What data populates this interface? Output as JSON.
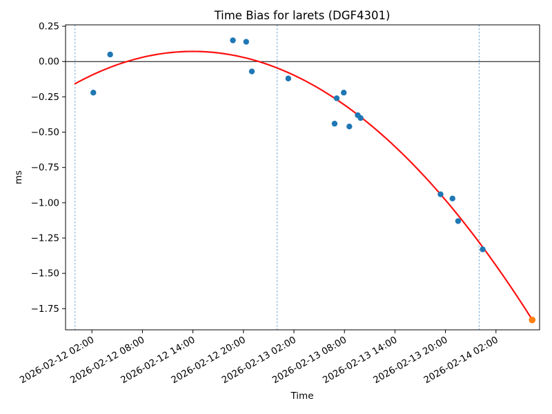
{
  "chart_data": {
    "type": "scatter",
    "title": "Time Bias for larets (DGF4301)",
    "xlabel": "Time",
    "ylabel": "ms",
    "x_base_time": "2026-02-12 00:00",
    "x_unit": "hours since 2026-02-12 00:00",
    "xlim": [
      -1.13,
      55.18
    ],
    "ylim": [
      -1.9,
      0.26
    ],
    "grid": false,
    "x_ticks": [
      {
        "hours": 2,
        "label": "2026-02-12 02:00"
      },
      {
        "hours": 8,
        "label": "2026-02-12 08:00"
      },
      {
        "hours": 14,
        "label": "2026-02-12 14:00"
      },
      {
        "hours": 20,
        "label": "2026-02-12 20:00"
      },
      {
        "hours": 26,
        "label": "2026-02-13 02:00"
      },
      {
        "hours": 32,
        "label": "2026-02-13 08:00"
      },
      {
        "hours": 38,
        "label": "2026-02-13 14:00"
      },
      {
        "hours": 44,
        "label": "2026-02-13 20:00"
      },
      {
        "hours": 50,
        "label": "2026-02-14 02:00"
      }
    ],
    "y_ticks": [
      0.25,
      0.0,
      -0.25,
      -0.5,
      -0.75,
      -1.0,
      -1.25,
      -1.5,
      -1.75
    ],
    "zero_line_y": 0,
    "day_boundary_vlines_hours": [
      0,
      24,
      48
    ],
    "colors": {
      "observed": "#1f77b4",
      "predicted": "#ff7f0e",
      "fit_line": "#fe1010",
      "day_vline": "#6aa5d6",
      "zero_line": "#000000",
      "spine": "#000000"
    },
    "series": [
      {
        "name": "observed",
        "marker": "circle",
        "color_key": "observed",
        "radius": 4.2,
        "points": [
          {
            "time": "2026-02-12 02:10",
            "hours": 2.17,
            "ms": -0.22
          },
          {
            "time": "2026-02-12 04:10",
            "hours": 4.17,
            "ms": 0.05
          },
          {
            "time": "2026-02-12 18:45",
            "hours": 18.75,
            "ms": 0.15
          },
          {
            "time": "2026-02-12 20:20",
            "hours": 20.33,
            "ms": 0.14
          },
          {
            "time": "2026-02-12 21:00",
            "hours": 21.0,
            "ms": -0.07
          },
          {
            "time": "2026-02-13 01:20",
            "hours": 25.33,
            "ms": -0.12
          },
          {
            "time": "2026-02-13 06:50",
            "hours": 30.83,
            "ms": -0.44
          },
          {
            "time": "2026-02-13 07:05",
            "hours": 31.08,
            "ms": -0.26
          },
          {
            "time": "2026-02-13 07:55",
            "hours": 31.92,
            "ms": -0.22
          },
          {
            "time": "2026-02-13 08:35",
            "hours": 32.58,
            "ms": -0.46
          },
          {
            "time": "2026-02-13 09:35",
            "hours": 33.58,
            "ms": -0.38
          },
          {
            "time": "2026-02-13 09:55",
            "hours": 33.92,
            "ms": -0.4
          },
          {
            "time": "2026-02-13 19:25",
            "hours": 43.42,
            "ms": -0.94
          },
          {
            "time": "2026-02-13 20:50",
            "hours": 44.83,
            "ms": -0.97
          },
          {
            "time": "2026-02-13 21:30",
            "hours": 45.5,
            "ms": -1.13
          },
          {
            "time": "2026-02-14 00:25",
            "hours": 48.42,
            "ms": -1.33
          }
        ]
      },
      {
        "name": "predicted",
        "marker": "circle",
        "color_key": "predicted",
        "radius": 4.8,
        "points": [
          {
            "time": "2026-02-14 06:18",
            "hours": 54.3,
            "ms": -1.83
          }
        ]
      }
    ],
    "fit_curve": {
      "type": "quadratic",
      "coeffs_ms_vs_hours": {
        "a": -0.001169,
        "b": 0.03271,
        "c": -0.157
      },
      "hours_range": [
        0,
        54.3
      ],
      "color_key": "fit_line",
      "line_width": 2.2
    }
  }
}
